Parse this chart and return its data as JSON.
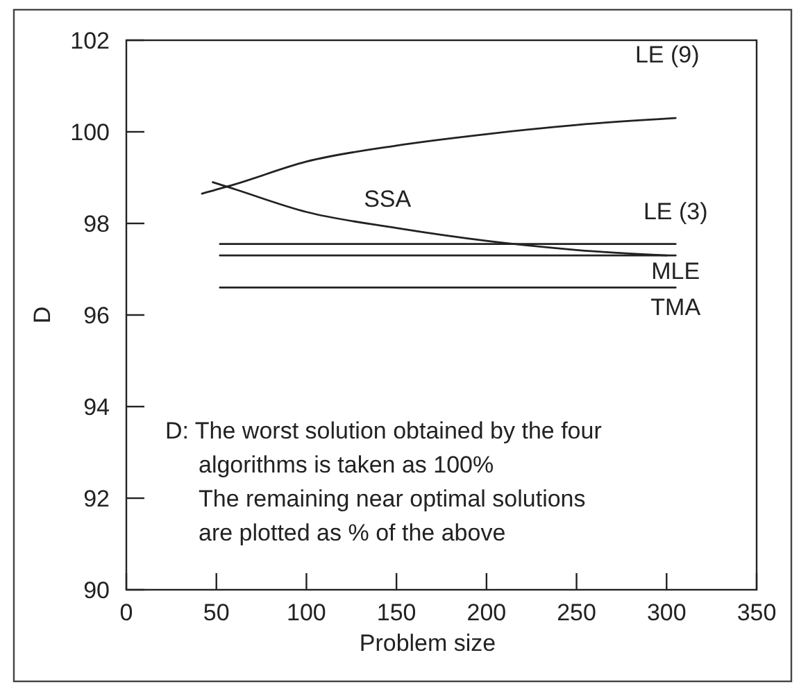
{
  "chart_data": {
    "type": "line",
    "xlabel": "Problem size",
    "ylabel": "D",
    "xlim": [
      0,
      350
    ],
    "xticks": [
      0,
      50,
      100,
      150,
      200,
      250,
      300,
      350
    ],
    "ylim": [
      90,
      102
    ],
    "yticks": [
      90,
      92,
      94,
      96,
      98,
      100,
      102
    ],
    "grid": false,
    "marker": "none",
    "line_style": "solid",
    "series": [
      {
        "name": "LE (9)",
        "color": "#222222",
        "x": [
          42,
          60,
          100,
          150,
          200,
          250,
          305
        ],
        "values": [
          98.65,
          98.85,
          99.35,
          99.7,
          99.95,
          100.15,
          100.3
        ]
      },
      {
        "name": "SSA",
        "color": "#222222",
        "x": [
          48,
          60,
          100,
          150,
          200,
          250,
          300
        ],
        "values": [
          98.9,
          98.75,
          98.25,
          97.9,
          97.62,
          97.42,
          97.3
        ]
      },
      {
        "name": "LE (3)",
        "color": "#222222",
        "x": [
          52,
          305
        ],
        "values": [
          97.55,
          97.55
        ]
      },
      {
        "name": "MLE",
        "color": "#222222",
        "x": [
          52,
          305
        ],
        "values": [
          97.3,
          97.3
        ]
      },
      {
        "name": "TMA",
        "color": "#222222",
        "x": [
          52,
          305
        ],
        "values": [
          96.6,
          96.6
        ]
      }
    ],
    "annotations": [
      "D: The worst solution obtained by the four\nalgorithms is taken as 100%\nThe remaining near optimal solutions\nare plotted as % of the above"
    ]
  }
}
